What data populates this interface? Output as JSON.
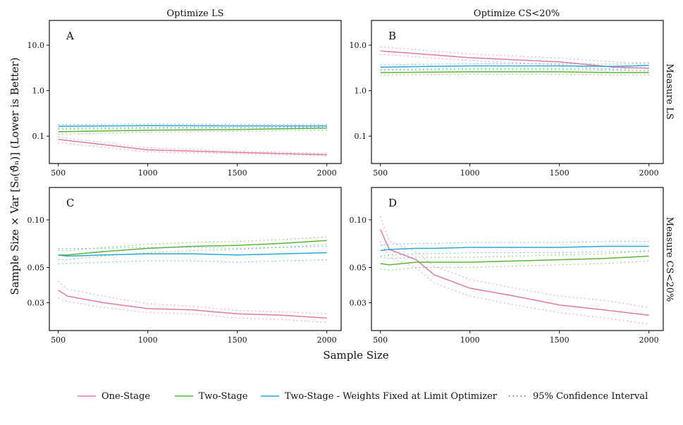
{
  "colors": {
    "one_stage": "#e07aa0",
    "two_stage": "#5db33a",
    "two_stage_fixed": "#2fa6d9",
    "ci": "#9a9a9a"
  },
  "chart_data": {
    "type": "line",
    "xlabel": "Sample Size",
    "ylabel": "Sample Size × Var [S₀(ϑ̂ₙ)] (Lower is Better)",
    "column_titles": [
      "Optimize LS",
      "Optimize CS<20%"
    ],
    "row_titles": [
      "Measure LS",
      "Measure CS<20%"
    ],
    "legend": {
      "placement": "bottom",
      "entries": [
        {
          "label": "One-Stage",
          "color": "#e07aa0",
          "style": "solid"
        },
        {
          "label": "Two-Stage",
          "color": "#5db33a",
          "style": "solid"
        },
        {
          "label": "Two-Stage - Weights Fixed at Limit Optimizer",
          "color": "#2fa6d9",
          "style": "solid"
        },
        {
          "label": "95% Confidence Interval",
          "color": "#444444",
          "style": "dotted"
        }
      ]
    },
    "x_ticks": [
      "500",
      "1000",
      "1500",
      "2000"
    ],
    "x_tick_values": [
      500,
      1000,
      1500,
      2000
    ],
    "xlim": [
      450,
      2080
    ],
    "panels": [
      {
        "letter": "A",
        "yscale": "log",
        "ylim": [
          0.025,
          35
        ],
        "y_ticks": [
          "10.0",
          "1.0",
          "0.1"
        ],
        "y_tick_values": [
          10,
          1,
          0.1
        ],
        "x": [
          500,
          1000,
          1500,
          2000
        ],
        "series": [
          {
            "key": "one_stage",
            "values": [
              0.085,
              0.05,
              0.044,
              0.039
            ],
            "ci_lower": [
              0.072,
              0.045,
              0.041,
              0.037
            ],
            "ci_upper": [
              0.095,
              0.055,
              0.047,
              0.042
            ]
          },
          {
            "key": "two_stage",
            "values": [
              0.125,
              0.135,
              0.14,
              0.15
            ],
            "ci_lower": [
              0.11,
              0.122,
              0.128,
              0.136
            ],
            "ci_upper": [
              0.14,
              0.148,
              0.153,
              0.163
            ]
          },
          {
            "key": "two_stage_fixed",
            "values": [
              0.165,
              0.17,
              0.168,
              0.168
            ],
            "ci_lower": [
              0.15,
              0.155,
              0.155,
              0.155
            ],
            "ci_upper": [
              0.18,
              0.185,
              0.182,
              0.181
            ]
          }
        ]
      },
      {
        "letter": "B",
        "yscale": "log",
        "ylim": [
          0.025,
          35
        ],
        "y_ticks": [
          "10.0",
          "1.0",
          "0.1"
        ],
        "y_tick_values": [
          10,
          1,
          0.1
        ],
        "x": [
          500,
          1000,
          1500,
          1800,
          2000
        ],
        "series": [
          {
            "key": "one_stage",
            "values": [
              7.5,
              5.3,
              4.3,
              3.3,
              3.1
            ],
            "ci_lower": [
              6.3,
              4.6,
              3.7,
              2.9,
              2.7
            ],
            "ci_upper": [
              9.2,
              6.4,
              5.2,
              4.3,
              4.1
            ]
          },
          {
            "key": "two_stage",
            "values": [
              2.5,
              2.6,
              2.6,
              2.5,
              2.5
            ],
            "ci_lower": [
              2.2,
              2.3,
              2.3,
              2.2,
              2.2
            ],
            "ci_upper": [
              2.8,
              2.9,
              2.9,
              2.8,
              2.8
            ]
          },
          {
            "key": "two_stage_fixed",
            "values": [
              3.3,
              3.5,
              3.5,
              3.4,
              3.6
            ],
            "ci_lower": [
              2.9,
              3.1,
              3.1,
              3.0,
              3.2
            ],
            "ci_upper": [
              3.7,
              3.9,
              3.9,
              3.8,
              4.0
            ]
          }
        ]
      },
      {
        "letter": "C",
        "yscale": "log",
        "ylim": [
          0.02,
          0.16
        ],
        "y_ticks": [
          "0.10",
          "0.05",
          "0.03"
        ],
        "y_tick_values": [
          0.1,
          0.05,
          0.03
        ],
        "x": [
          500,
          550,
          750,
          1000,
          1250,
          1500,
          1750,
          2000
        ],
        "series": [
          {
            "key": "one_stage",
            "values": [
              0.036,
              0.033,
              0.03,
              0.0275,
              0.027,
              0.0255,
              0.025,
              0.024
            ],
            "ci_lower": [
              0.032,
              0.0305,
              0.028,
              0.026,
              0.0255,
              0.024,
              0.0235,
              0.0225
            ],
            "ci_upper": [
              0.041,
              0.0365,
              0.033,
              0.0295,
              0.0285,
              0.0268,
              0.0262,
              0.0255
            ]
          },
          {
            "key": "two_stage",
            "values": [
              0.06,
              0.06,
              0.063,
              0.066,
              0.068,
              0.069,
              0.071,
              0.074
            ],
            "ci_lower": [
              0.056,
              0.056,
              0.059,
              0.062,
              0.064,
              0.065,
              0.067,
              0.07
            ],
            "ci_upper": [
              0.064,
              0.064,
              0.067,
              0.07,
              0.072,
              0.073,
              0.075,
              0.078
            ]
          },
          {
            "key": "two_stage_fixed",
            "values": [
              0.06,
              0.059,
              0.06,
              0.061,
              0.061,
              0.06,
              0.061,
              0.062
            ],
            "ci_lower": [
              0.053,
              0.053,
              0.054,
              0.055,
              0.055,
              0.054,
              0.055,
              0.056
            ],
            "ci_upper": [
              0.066,
              0.066,
              0.066,
              0.067,
              0.067,
              0.066,
              0.067,
              0.068
            ]
          }
        ]
      },
      {
        "letter": "D",
        "yscale": "log",
        "ylim": [
          0.02,
          0.16
        ],
        "y_ticks": [
          "0.10",
          "0.05",
          "0.03"
        ],
        "y_tick_values": [
          0.1,
          0.05,
          0.03
        ],
        "x": [
          500,
          550,
          700,
          800,
          1000,
          1250,
          1500,
          1750,
          2000
        ],
        "series": [
          {
            "key": "one_stage",
            "values": [
              0.087,
              0.065,
              0.056,
              0.045,
              0.037,
              0.033,
              0.029,
              0.027,
              0.025
            ],
            "ci_lower": [
              0.073,
              0.058,
              0.05,
              0.04,
              0.033,
              0.029,
              0.026,
              0.024,
              0.022
            ],
            "ci_upper": [
              0.105,
              0.073,
              0.063,
              0.051,
              0.042,
              0.037,
              0.033,
              0.031,
              0.028
            ]
          },
          {
            "key": "two_stage",
            "values": [
              0.053,
              0.052,
              0.054,
              0.054,
              0.054,
              0.055,
              0.056,
              0.057,
              0.059
            ],
            "ci_lower": [
              0.049,
              0.048,
              0.05,
              0.05,
              0.05,
              0.051,
              0.052,
              0.053,
              0.055
            ],
            "ci_upper": [
              0.058,
              0.057,
              0.058,
              0.058,
              0.058,
              0.059,
              0.06,
              0.061,
              0.064
            ]
          },
          {
            "key": "two_stage_fixed",
            "values": [
              0.064,
              0.065,
              0.066,
              0.066,
              0.067,
              0.067,
              0.067,
              0.068,
              0.068
            ],
            "ci_lower": [
              0.059,
              0.06,
              0.061,
              0.061,
              0.062,
              0.062,
              0.062,
              0.063,
              0.063
            ],
            "ci_upper": [
              0.069,
              0.07,
              0.071,
              0.071,
              0.072,
              0.072,
              0.072,
              0.073,
              0.073
            ]
          }
        ]
      }
    ]
  }
}
